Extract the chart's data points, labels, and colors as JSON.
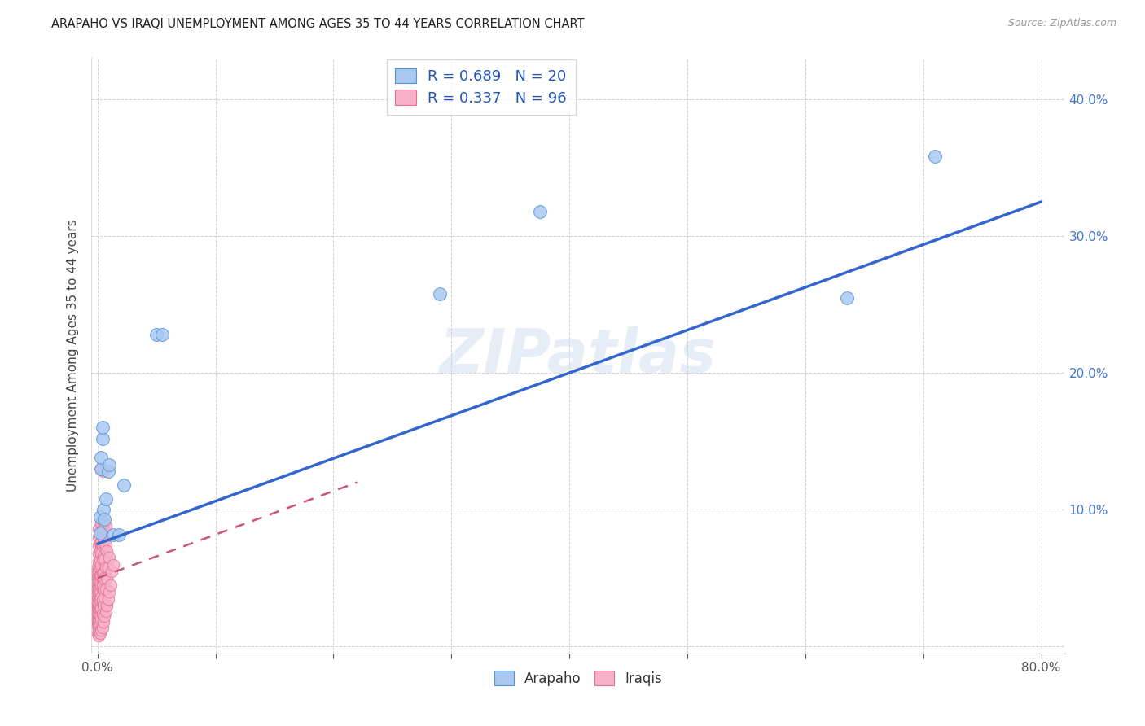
{
  "title": "ARAPAHO VS IRAQI UNEMPLOYMENT AMONG AGES 35 TO 44 YEARS CORRELATION CHART",
  "source": "Source: ZipAtlas.com",
  "ylabel": "Unemployment Among Ages 35 to 44 years",
  "xlim": [
    -0.005,
    0.82
  ],
  "ylim": [
    -0.005,
    0.43
  ],
  "xticks": [
    0.0,
    0.1,
    0.2,
    0.3,
    0.4,
    0.5,
    0.6,
    0.7,
    0.8
  ],
  "yticks": [
    0.0,
    0.1,
    0.2,
    0.3,
    0.4
  ],
  "arapaho_color": "#a8c8f0",
  "iraqi_color": "#f8b0c8",
  "arapaho_edge_color": "#5590d8",
  "iraqi_edge_color": "#e07090",
  "arapaho_line_color": "#3366cc",
  "iraqi_line_color": "#cc5577",
  "watermark_color": "#c8d8ef",
  "arapaho_points": [
    [
      0.002,
      0.083
    ],
    [
      0.002,
      0.095
    ],
    [
      0.003,
      0.13
    ],
    [
      0.003,
      0.138
    ],
    [
      0.004,
      0.152
    ],
    [
      0.004,
      0.16
    ],
    [
      0.005,
      0.1
    ],
    [
      0.006,
      0.093
    ],
    [
      0.007,
      0.108
    ],
    [
      0.009,
      0.128
    ],
    [
      0.01,
      0.133
    ],
    [
      0.013,
      0.082
    ],
    [
      0.018,
      0.082
    ],
    [
      0.022,
      0.118
    ],
    [
      0.05,
      0.228
    ],
    [
      0.055,
      0.228
    ],
    [
      0.29,
      0.258
    ],
    [
      0.375,
      0.318
    ],
    [
      0.635,
      0.255
    ],
    [
      0.71,
      0.358
    ]
  ],
  "iraqi_points": [
    [
      0.0,
      0.01
    ],
    [
      0.0,
      0.015
    ],
    [
      0.0,
      0.018
    ],
    [
      0.0,
      0.02
    ],
    [
      0.0,
      0.022
    ],
    [
      0.0,
      0.025
    ],
    [
      0.0,
      0.028
    ],
    [
      0.0,
      0.03
    ],
    [
      0.0,
      0.033
    ],
    [
      0.0,
      0.036
    ],
    [
      0.0,
      0.04
    ],
    [
      0.0,
      0.043
    ],
    [
      0.0,
      0.046
    ],
    [
      0.0,
      0.05
    ],
    [
      0.0,
      0.054
    ],
    [
      0.0,
      0.058
    ],
    [
      0.001,
      0.008
    ],
    [
      0.001,
      0.012
    ],
    [
      0.001,
      0.016
    ],
    [
      0.001,
      0.02
    ],
    [
      0.001,
      0.024
    ],
    [
      0.001,
      0.028
    ],
    [
      0.001,
      0.032
    ],
    [
      0.001,
      0.036
    ],
    [
      0.001,
      0.04
    ],
    [
      0.001,
      0.044
    ],
    [
      0.001,
      0.048
    ],
    [
      0.001,
      0.052
    ],
    [
      0.001,
      0.056
    ],
    [
      0.001,
      0.062
    ],
    [
      0.001,
      0.068
    ],
    [
      0.001,
      0.074
    ],
    [
      0.001,
      0.08
    ],
    [
      0.001,
      0.086
    ],
    [
      0.002,
      0.01
    ],
    [
      0.002,
      0.016
    ],
    [
      0.002,
      0.022
    ],
    [
      0.002,
      0.028
    ],
    [
      0.002,
      0.034
    ],
    [
      0.002,
      0.04
    ],
    [
      0.002,
      0.046
    ],
    [
      0.002,
      0.052
    ],
    [
      0.002,
      0.058
    ],
    [
      0.002,
      0.064
    ],
    [
      0.002,
      0.07
    ],
    [
      0.002,
      0.076
    ],
    [
      0.003,
      0.012
    ],
    [
      0.003,
      0.02
    ],
    [
      0.003,
      0.028
    ],
    [
      0.003,
      0.036
    ],
    [
      0.003,
      0.044
    ],
    [
      0.003,
      0.052
    ],
    [
      0.003,
      0.06
    ],
    [
      0.003,
      0.068
    ],
    [
      0.003,
      0.076
    ],
    [
      0.003,
      0.084
    ],
    [
      0.003,
      0.09
    ],
    [
      0.003,
      0.13
    ],
    [
      0.004,
      0.014
    ],
    [
      0.004,
      0.024
    ],
    [
      0.004,
      0.034
    ],
    [
      0.004,
      0.044
    ],
    [
      0.004,
      0.054
    ],
    [
      0.004,
      0.064
    ],
    [
      0.004,
      0.074
    ],
    [
      0.004,
      0.084
    ],
    [
      0.004,
      0.092
    ],
    [
      0.005,
      0.018
    ],
    [
      0.005,
      0.03
    ],
    [
      0.005,
      0.042
    ],
    [
      0.005,
      0.054
    ],
    [
      0.005,
      0.066
    ],
    [
      0.005,
      0.076
    ],
    [
      0.005,
      0.086
    ],
    [
      0.005,
      0.128
    ],
    [
      0.006,
      0.022
    ],
    [
      0.006,
      0.036
    ],
    [
      0.006,
      0.05
    ],
    [
      0.006,
      0.064
    ],
    [
      0.006,
      0.078
    ],
    [
      0.006,
      0.09
    ],
    [
      0.007,
      0.026
    ],
    [
      0.007,
      0.042
    ],
    [
      0.007,
      0.058
    ],
    [
      0.007,
      0.074
    ],
    [
      0.007,
      0.088
    ],
    [
      0.008,
      0.03
    ],
    [
      0.008,
      0.05
    ],
    [
      0.008,
      0.07
    ],
    [
      0.009,
      0.035
    ],
    [
      0.009,
      0.058
    ],
    [
      0.01,
      0.04
    ],
    [
      0.01,
      0.065
    ],
    [
      0.011,
      0.045
    ],
    [
      0.012,
      0.055
    ],
    [
      0.013,
      0.06
    ]
  ],
  "arapaho_line_x": [
    0.0,
    0.8
  ],
  "arapaho_line_y": [
    0.075,
    0.325
  ],
  "iraqi_line_x": [
    0.0,
    0.22
  ],
  "iraqi_line_y": [
    0.05,
    0.12
  ]
}
